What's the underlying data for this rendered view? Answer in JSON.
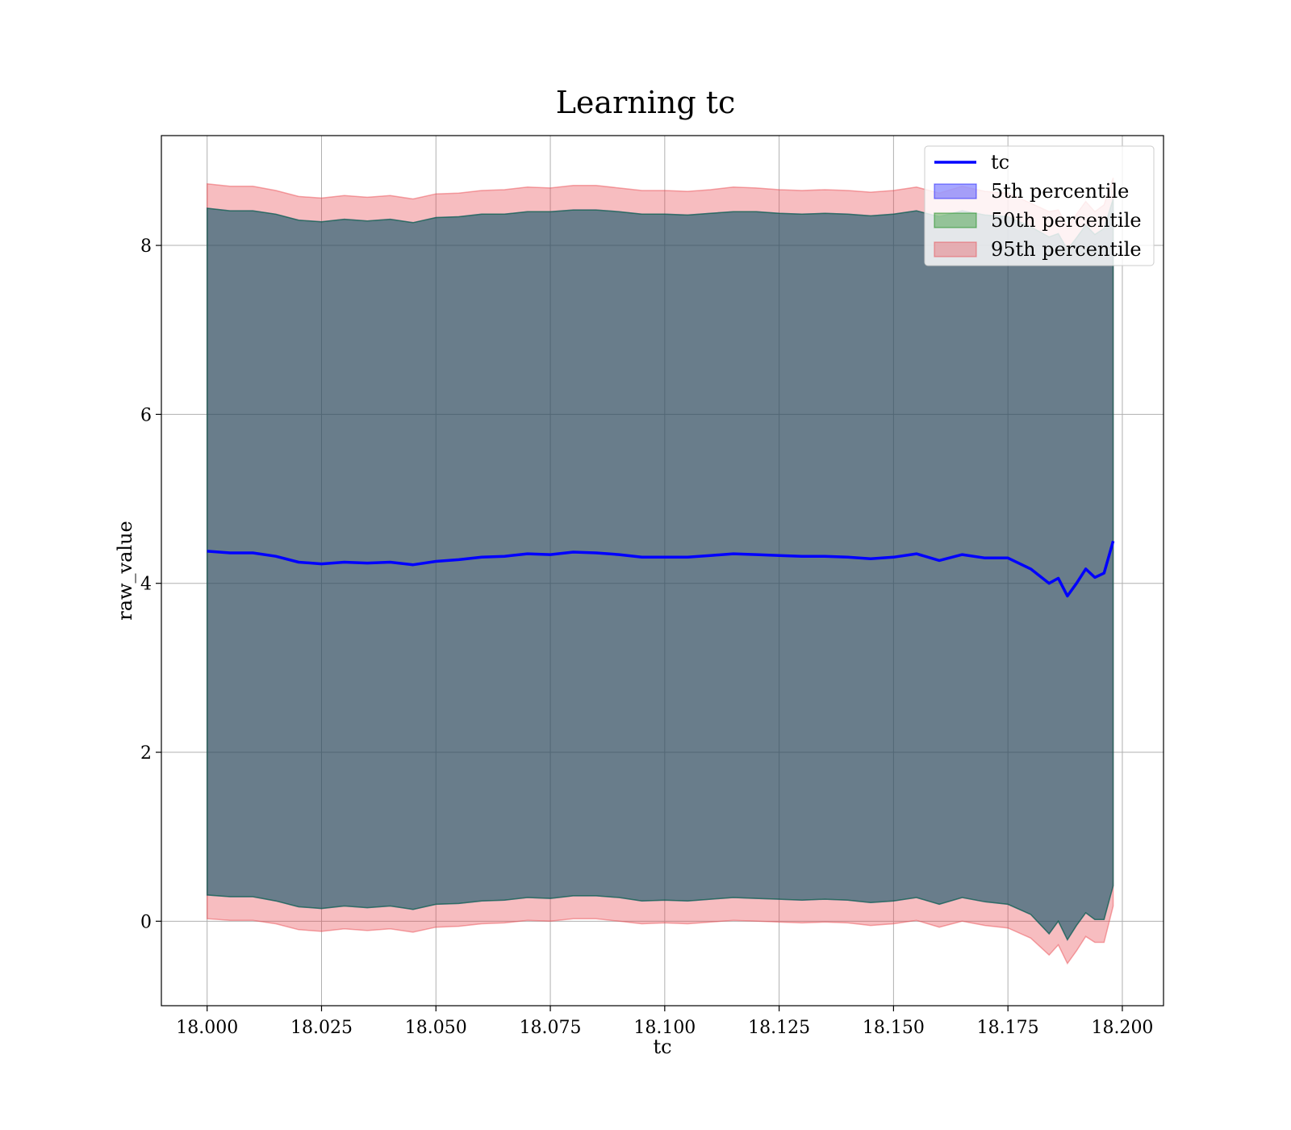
{
  "chart_data": {
    "type": "area",
    "title": "Learning tc",
    "xlabel": "tc",
    "ylabel": "raw_value",
    "xlim": [
      17.99,
      18.209
    ],
    "ylim": [
      -1.0,
      9.3
    ],
    "grid": true,
    "legend_placement": "upper-right",
    "x_ticks": [
      18.0,
      18.025,
      18.05,
      18.075,
      18.1,
      18.125,
      18.15,
      18.175,
      18.2
    ],
    "x_tick_labels": [
      "18.000",
      "18.025",
      "18.050",
      "18.075",
      "18.100",
      "18.125",
      "18.150",
      "18.175",
      "18.200"
    ],
    "y_ticks": [
      0,
      2,
      4,
      6,
      8
    ],
    "y_tick_labels": [
      "0",
      "2",
      "4",
      "6",
      "8"
    ],
    "x": [
      18.0,
      18.005,
      18.01,
      18.015,
      18.02,
      18.025,
      18.03,
      18.035,
      18.04,
      18.045,
      18.05,
      18.055,
      18.06,
      18.065,
      18.07,
      18.075,
      18.08,
      18.085,
      18.09,
      18.095,
      18.1,
      18.105,
      18.11,
      18.115,
      18.12,
      18.125,
      18.13,
      18.135,
      18.14,
      18.145,
      18.15,
      18.155,
      18.16,
      18.165,
      18.17,
      18.175,
      18.18,
      18.184,
      18.186,
      18.188,
      18.19,
      18.192,
      18.194,
      18.196,
      18.198
    ],
    "series": [
      {
        "name": "tc",
        "kind": "line",
        "color": "#0000ff",
        "values": [
          4.38,
          4.36,
          4.36,
          4.32,
          4.25,
          4.23,
          4.25,
          4.24,
          4.25,
          4.22,
          4.26,
          4.28,
          4.31,
          4.32,
          4.35,
          4.34,
          4.37,
          4.36,
          4.34,
          4.31,
          4.31,
          4.31,
          4.33,
          4.35,
          4.34,
          4.33,
          4.32,
          4.32,
          4.31,
          4.29,
          4.31,
          4.35,
          4.27,
          4.34,
          4.3,
          4.3,
          4.17,
          4.0,
          4.06,
          3.85,
          4.0,
          4.17,
          4.07,
          4.12,
          4.5
        ]
      },
      {
        "name": "5th percentile",
        "kind": "band",
        "color": "#0000ff",
        "lower": [
          0.31,
          0.29,
          0.29,
          0.24,
          0.17,
          0.15,
          0.18,
          0.16,
          0.18,
          0.14,
          0.2,
          0.21,
          0.24,
          0.25,
          0.28,
          0.27,
          0.3,
          0.3,
          0.28,
          0.24,
          0.25,
          0.24,
          0.26,
          0.28,
          0.27,
          0.26,
          0.25,
          0.26,
          0.25,
          0.22,
          0.24,
          0.28,
          0.2,
          0.28,
          0.23,
          0.2,
          0.08,
          -0.15,
          0.0,
          -0.22,
          -0.05,
          0.1,
          0.02,
          0.02,
          0.42
        ],
        "upper": [
          8.44,
          8.41,
          8.41,
          8.37,
          8.3,
          8.28,
          8.31,
          8.29,
          8.31,
          8.27,
          8.33,
          8.34,
          8.37,
          8.37,
          8.4,
          8.4,
          8.42,
          8.42,
          8.4,
          8.37,
          8.37,
          8.36,
          8.38,
          8.4,
          8.4,
          8.38,
          8.37,
          8.38,
          8.37,
          8.35,
          8.37,
          8.41,
          8.34,
          8.41,
          8.36,
          8.34,
          8.22,
          8.1,
          8.14,
          7.95,
          8.09,
          8.24,
          8.13,
          8.2,
          8.55
        ]
      },
      {
        "name": "50th percentile",
        "kind": "band",
        "color": "#008000",
        "lower": [
          0.31,
          0.29,
          0.29,
          0.24,
          0.17,
          0.15,
          0.18,
          0.16,
          0.18,
          0.14,
          0.2,
          0.21,
          0.24,
          0.25,
          0.28,
          0.27,
          0.3,
          0.3,
          0.28,
          0.24,
          0.25,
          0.24,
          0.26,
          0.28,
          0.27,
          0.26,
          0.25,
          0.26,
          0.25,
          0.22,
          0.24,
          0.28,
          0.2,
          0.28,
          0.23,
          0.2,
          0.08,
          -0.15,
          0.0,
          -0.22,
          -0.05,
          0.1,
          0.02,
          0.02,
          0.42
        ],
        "upper": [
          8.44,
          8.41,
          8.41,
          8.37,
          8.3,
          8.28,
          8.31,
          8.29,
          8.31,
          8.27,
          8.33,
          8.34,
          8.37,
          8.37,
          8.4,
          8.4,
          8.42,
          8.42,
          8.4,
          8.37,
          8.37,
          8.36,
          8.38,
          8.4,
          8.4,
          8.38,
          8.37,
          8.38,
          8.37,
          8.35,
          8.37,
          8.41,
          8.34,
          8.41,
          8.36,
          8.34,
          8.22,
          8.1,
          8.14,
          7.95,
          8.09,
          8.24,
          8.13,
          8.2,
          8.55
        ]
      },
      {
        "name": "95th percentile",
        "kind": "band",
        "color": "#e8434a",
        "lower": [
          0.03,
          0.01,
          0.01,
          -0.03,
          -0.1,
          -0.12,
          -0.09,
          -0.11,
          -0.09,
          -0.13,
          -0.07,
          -0.06,
          -0.03,
          -0.02,
          0.01,
          0.0,
          0.03,
          0.03,
          0.0,
          -0.03,
          -0.02,
          -0.03,
          -0.01,
          0.01,
          0.0,
          -0.01,
          -0.02,
          -0.01,
          -0.02,
          -0.05,
          -0.03,
          0.01,
          -0.07,
          0.0,
          -0.05,
          -0.08,
          -0.2,
          -0.4,
          -0.28,
          -0.5,
          -0.35,
          -0.18,
          -0.25,
          -0.25,
          0.18
        ],
        "upper": [
          8.73,
          8.7,
          8.7,
          8.65,
          8.58,
          8.56,
          8.59,
          8.57,
          8.59,
          8.55,
          8.61,
          8.62,
          8.65,
          8.66,
          8.69,
          8.68,
          8.71,
          8.71,
          8.68,
          8.65,
          8.65,
          8.64,
          8.66,
          8.69,
          8.68,
          8.66,
          8.65,
          8.66,
          8.65,
          8.63,
          8.65,
          8.69,
          8.62,
          8.7,
          8.64,
          8.62,
          8.5,
          8.4,
          8.42,
          8.22,
          8.37,
          8.52,
          8.4,
          8.48,
          8.8
        ]
      }
    ],
    "legend": [
      {
        "label": "tc",
        "kind": "line",
        "color": "#0000ff"
      },
      {
        "label": "5th percentile",
        "kind": "patch",
        "color": "#0000ff"
      },
      {
        "label": "50th percentile",
        "kind": "patch",
        "color": "#008000"
      },
      {
        "label": "95th percentile",
        "kind": "patch",
        "color": "#e8434a"
      }
    ]
  }
}
